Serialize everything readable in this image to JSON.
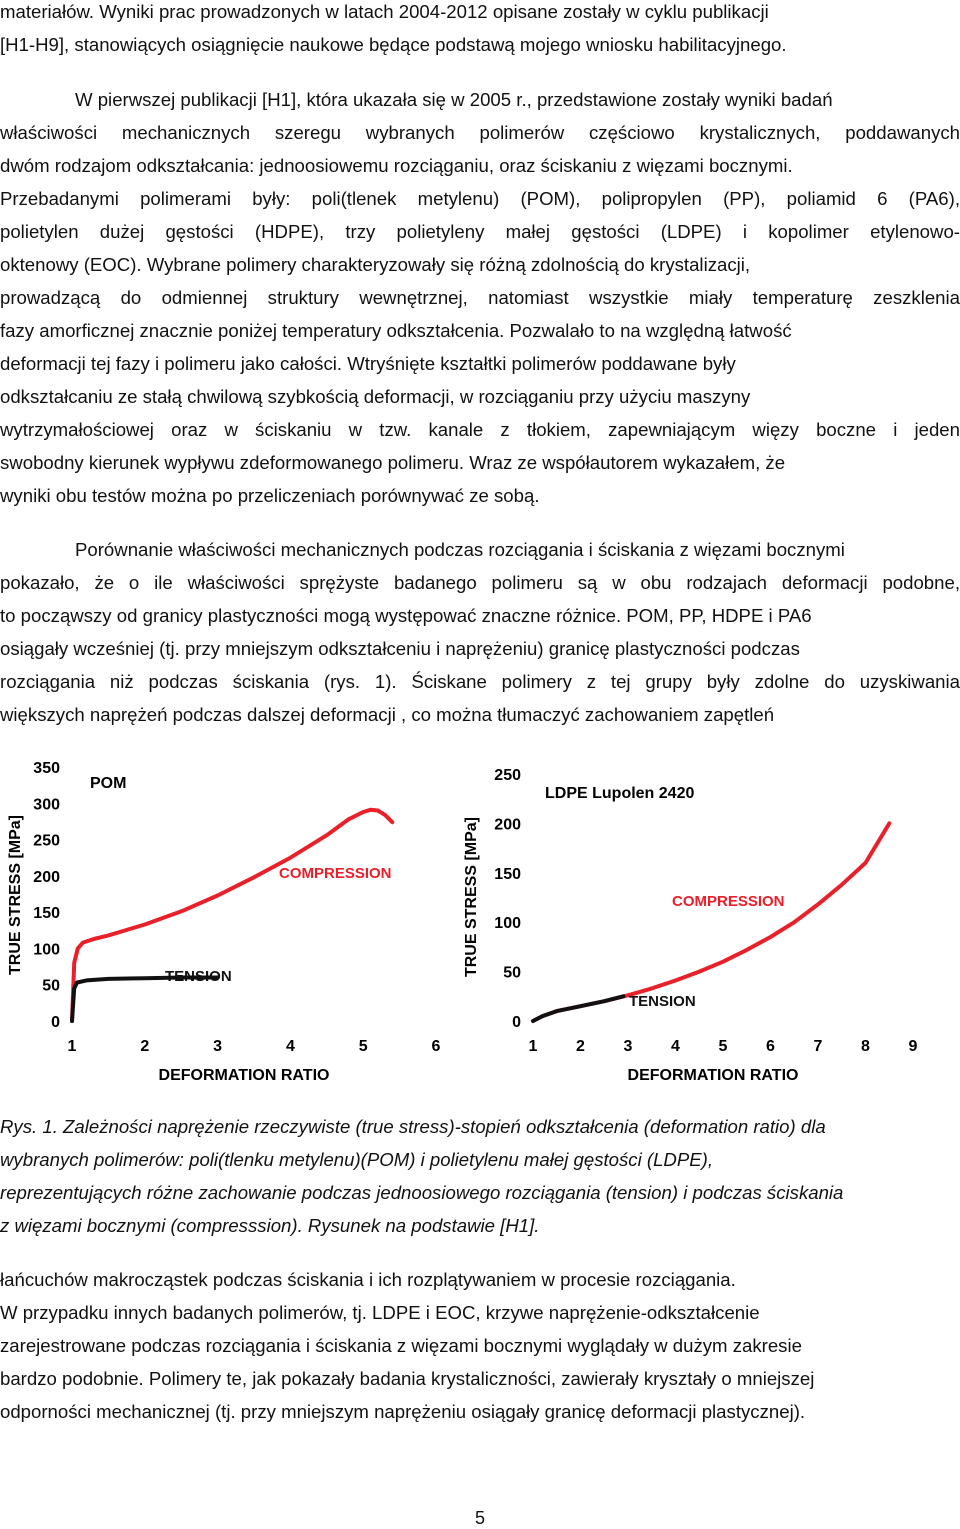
{
  "paragraph1": [
    "materiałów. Wyniki prac prowadzonych w latach 2004-2012 opisane zostały w cyklu publikacji",
    "[H1-H9], stanowiących osiągnięcie naukowe będące podstawą mojego wniosku habilitacyjnego."
  ],
  "paragraph2": [
    "W pierwszej publikacji [H1], która ukazała się w 2005 r., przedstawione zostały wyniki badań",
    "właściwości mechanicznych szeregu wybranych polimerów częściowo krystalicznych, poddawanych",
    "dwóm rodzajom odkształcania: jednoosiowemu rozciąganiu, oraz ściskaniu z więzami bocznymi.",
    "Przebadanymi polimerami były:  poli(tlenek metylenu) (POM), polipropylen (PP), poliamid 6 (PA6),",
    "polietylen dużej gęstości (HDPE), trzy polietyleny małej gęstości (LDPE) i kopolimer etylenowo-",
    "oktenowy (EOC).  Wybrane polimery charakteryzowały się różną zdolnością do krystalizacji,",
    "prowadzącą do odmiennej struktury wewnętrznej, natomiast wszystkie miały temperaturę zeszklenia",
    "fazy amorficznej znacznie poniżej temperatury odkształcenia. Pozwalało to na względną łatwość",
    "deformacji tej fazy i polimeru jako całości. Wtryśnięte kształtki polimerów poddawane były",
    "odkształcaniu ze stałą chwilową szybkością deformacji, w rozciąganiu przy użyciu maszyny",
    "wytrzymałościowej oraz w ściskaniu w tzw. kanale z tłokiem, zapewniającym więzy boczne i jeden",
    "swobodny kierunek wypływu zdeformowanego polimeru. Wraz ze współautorem wykazałem, że",
    "wyniki obu testów można po przeliczeniach porównywać ze sobą."
  ],
  "paragraph3": [
    "Porównanie właściwości mechanicznych podczas rozciągania i ściskania z więzami bocznymi",
    "pokazało, że o ile właściwości sprężyste badanego polimeru są w obu rodzajach deformacji podobne,",
    "to począwszy od granicy plastyczności mogą występować znaczne różnice. POM, PP, HDPE i PA6",
    "osiągały wcześniej (tj. przy mniejszym odkształceniu i naprężeniu) granicę plastyczności podczas",
    "rozciągania niż podczas ściskania (rys. 1). Ściskane polimery z tej grupy były zdolne do uzyskiwania",
    "większych naprężeń podczas dalszej deformacji , co można tłumaczyć zachowaniem zapętleń"
  ],
  "caption": [
    "Rys. 1. Zależności naprężenie rzeczywiste (true stress)-stopień odkształcenia (deformation ratio) dla",
    "wybranych polimerów: poli(tlenku metylenu)(POM) i polietylenu małej gęstości (LDPE),",
    "reprezentujących różne zachowanie podczas jednoosiowego rozciągania (tension) i podczas ściskania",
    "z więzami bocznymi (compresssion). Rysunek na podstawie [H1]."
  ],
  "paragraph4": [
    "łańcuchów makrocząstek podczas ściskania i ich rozplątywaniem w procesie rozciągania.",
    "W przypadku innych badanych polimerów, tj. LDPE i EOC, krzywe naprężenie-odkształcenie",
    "zarejestrowane podczas rozciągania i ściskania z więzami bocznymi wyglądały w dużym zakresie",
    "bardzo podobnie. Polimery te, jak pokazały badania krystaliczności, zawierały kryształy o mniejszej",
    "odporności mechanicznej (tj. przy mniejszym naprężeniu osiągały granicę deformacji plastycznej)."
  ],
  "page_number": "5",
  "colors": {
    "compression": "#e8202a",
    "tension": "#111111"
  },
  "chart_data": [
    {
      "type": "line",
      "title": "POM",
      "xlabel": "DEFORMATION RATIO",
      "ylabel": "TRUE STRESS [MPa]",
      "xlim": [
        1,
        6
      ],
      "ylim": [
        0,
        350
      ],
      "xticks": [
        "1",
        "2",
        "3",
        "4",
        "5",
        "6"
      ],
      "yticks": [
        "0",
        "50",
        "100",
        "150",
        "200",
        "250",
        "300",
        "350"
      ],
      "series": [
        {
          "name": "COMPRESSION",
          "color": "#e8202a",
          "x": [
            1.0,
            1.03,
            1.08,
            1.15,
            1.3,
            1.5,
            2.0,
            2.5,
            3.0,
            3.5,
            4.0,
            4.5,
            4.8,
            5.0,
            5.1,
            5.2,
            5.3,
            5.4
          ],
          "y": [
            0,
            80,
            100,
            108,
            113,
            118,
            133,
            151,
            173,
            198,
            225,
            256,
            278,
            288,
            291,
            290,
            284,
            274
          ]
        },
        {
          "name": "TENSION",
          "color": "#111111",
          "x": [
            1.0,
            1.03,
            1.07,
            1.2,
            1.5,
            2.0,
            2.5,
            3.0
          ],
          "y": [
            0,
            45,
            53,
            56,
            58,
            59,
            60,
            60
          ]
        }
      ]
    },
    {
      "type": "line",
      "title": "LDPE Lupolen 2420",
      "xlabel": "DEFORMATION RATIO",
      "ylabel": "TRUE STRESS [MPa]",
      "xlim": [
        1,
        9
      ],
      "ylim": [
        0,
        250
      ],
      "xticks": [
        "1",
        "2",
        "3",
        "4",
        "5",
        "6",
        "7",
        "8",
        "9"
      ],
      "yticks": [
        "0",
        "50",
        "100",
        "150",
        "200",
        "250"
      ],
      "series": [
        {
          "name": "COMPRESSION",
          "color": "#e8202a",
          "x": [
            1.0,
            1.2,
            1.5,
            2.0,
            2.5,
            3.0,
            3.5,
            4.0,
            4.5,
            5.0,
            5.5,
            6.0,
            6.5,
            7.0,
            7.5,
            8.0,
            8.5
          ],
          "y": [
            0,
            5,
            10,
            15,
            20,
            26,
            33,
            41,
            50,
            60,
            72,
            85,
            100,
            118,
            138,
            160,
            200
          ]
        },
        {
          "name": "TENSION",
          "color": "#111111",
          "x": [
            1.0,
            1.2,
            1.5,
            2.0,
            2.5,
            2.9
          ],
          "y": [
            0,
            5,
            10,
            15,
            20,
            25
          ]
        }
      ]
    }
  ]
}
